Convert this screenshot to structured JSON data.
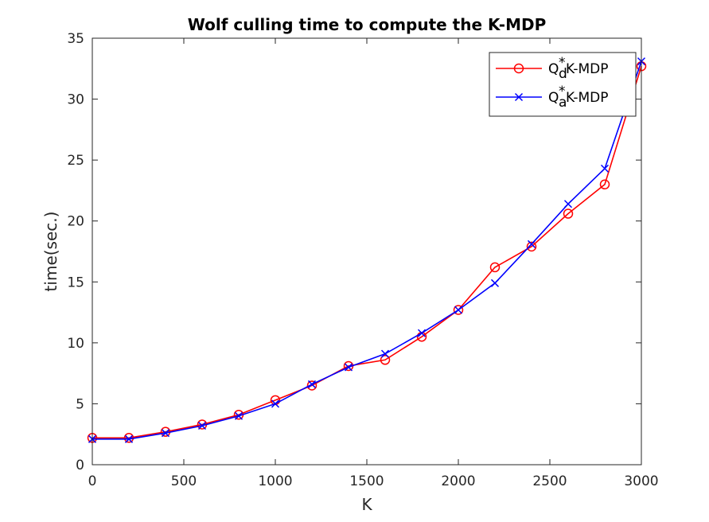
{
  "chart_data": {
    "type": "line",
    "title": "Wolf culling time to compute the K-MDP",
    "xlabel": "K",
    "ylabel": "time(sec.)",
    "xlim": [
      0,
      3000
    ],
    "ylim": [
      0,
      35
    ],
    "x_ticks": [
      0,
      500,
      1000,
      1500,
      2000,
      2500,
      3000
    ],
    "y_ticks": [
      0,
      5,
      10,
      15,
      20,
      25,
      30,
      35
    ],
    "grid": false,
    "legend_position": "top-right",
    "x": [
      0,
      200,
      400,
      600,
      800,
      1000,
      1200,
      1400,
      1600,
      1800,
      2000,
      2200,
      2400,
      2600,
      2800,
      3000
    ],
    "series": [
      {
        "name": "Q_d^* K-MDP",
        "legend_base": "Q",
        "legend_sup": "*",
        "legend_sub": "d",
        "legend_suffix": " K-MDP",
        "color": "#ff0000",
        "marker": "circle",
        "values": [
          2.2,
          2.2,
          2.7,
          3.3,
          4.1,
          5.3,
          6.5,
          8.1,
          8.6,
          10.5,
          12.7,
          16.2,
          17.9,
          20.6,
          23.0,
          32.7
        ]
      },
      {
        "name": "Q_a^* K-MDP",
        "legend_base": "Q",
        "legend_sup": "*",
        "legend_sub": "a",
        "legend_suffix": " K-MDP",
        "color": "#0000ff",
        "marker": "x",
        "values": [
          2.1,
          2.1,
          2.6,
          3.2,
          4.0,
          5.0,
          6.6,
          8.0,
          9.1,
          10.8,
          12.7,
          14.9,
          18.1,
          21.4,
          24.3,
          33.1
        ]
      }
    ]
  }
}
